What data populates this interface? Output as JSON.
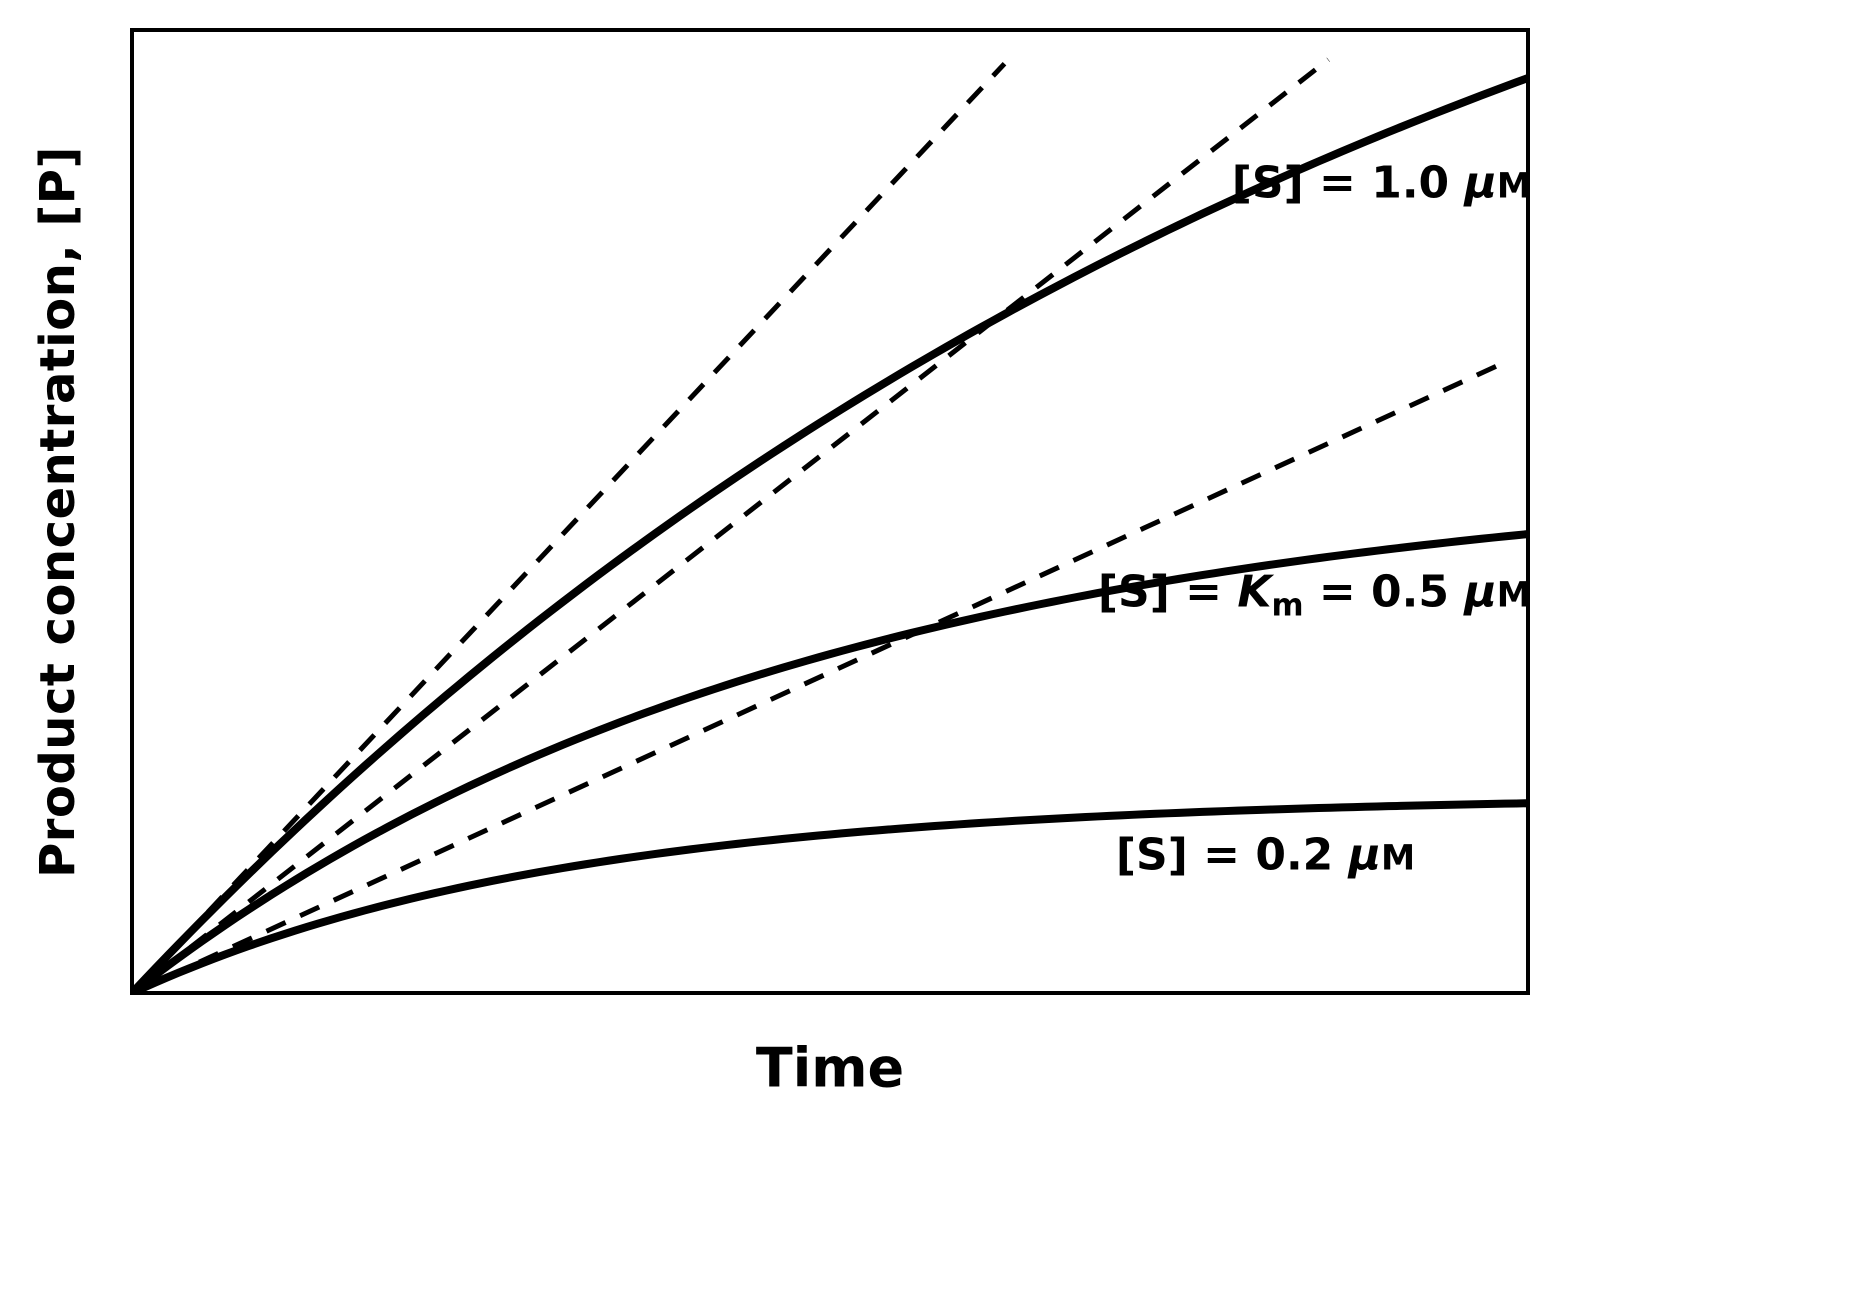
{
  "figure": {
    "background": "#ffffff",
    "ink_color": "#000000",
    "kind": "enzyme-kinetics-progress-curves"
  },
  "chart_data": {
    "type": "line",
    "title": "",
    "xlabel": "Time",
    "ylabel": "Product concentration, [P]",
    "x_axis": {
      "range": [
        0,
        1
      ],
      "ticks": [],
      "label": "Time"
    },
    "y_axis": {
      "range": [
        0,
        1
      ],
      "ticks": [],
      "label": "Product concentration, [P]"
    },
    "grid": false,
    "legend": "inline-labels",
    "description": "Product concentration [P] versus time for three substrate concentrations; solid progress curves saturate over time, dashed straight lines from the origin show the initial velocity (tangent at t = 0) for each curve.",
    "series": [
      {
        "name": "[S] = 1.0 uM",
        "line": "solid",
        "model": "y = plateau * (1 - exp(-k * t))",
        "plateau": 1.45,
        "k": 1.065,
        "initial_slope": 1.544,
        "y_at_t1": 0.95
      },
      {
        "name": "[S] = Km = 0.5 uM",
        "line": "solid",
        "model": "y = plateau * (1 - exp(-k * t))",
        "plateau": 0.545,
        "k": 2.075,
        "initial_slope": 1.131,
        "y_at_t1": 0.477
      },
      {
        "name": "[S] = 0.2 uM",
        "line": "solid",
        "model": "y = plateau * (1 - exp(-k * t))",
        "plateau": 0.205,
        "k": 3.25,
        "initial_slope": 0.666,
        "y_at_t1": 0.197
      }
    ],
    "tangent_lines": [
      {
        "tangent_to": "[S] = 1.0 uM",
        "slope": 1.544,
        "x_start": 0,
        "x_end": 0.625,
        "line": "dashed"
      },
      {
        "tangent_to": "[S] = Km = 0.5 uM",
        "slope": 1.131,
        "x_start": 0,
        "x_end": 0.857,
        "line": "dashed"
      },
      {
        "tangent_to": "[S] = 0.2 uM",
        "slope": 0.666,
        "x_start": 0,
        "x_end": 0.986,
        "line": "dashed"
      }
    ],
    "annotations": [
      {
        "x": 0.895,
        "y": 0.841,
        "parts": [
          {
            "t": "[S] = 1.0 "
          },
          {
            "t": "μ",
            "i": true
          },
          {
            "t": "M",
            "sc": true
          }
        ]
      },
      {
        "x": 0.847,
        "y": 0.413,
        "parts": [
          {
            "t": "[S] = "
          },
          {
            "t": "K",
            "i": true
          },
          {
            "t": "m",
            "sub": true
          },
          {
            "t": " = 0.5 "
          },
          {
            "t": "μ",
            "i": true
          },
          {
            "t": "M",
            "sc": true
          }
        ]
      },
      {
        "x": 0.812,
        "y": 0.143,
        "parts": [
          {
            "t": "[S] = 0.2 "
          },
          {
            "t": "μ",
            "i": true
          },
          {
            "t": "M",
            "sc": true
          }
        ]
      }
    ]
  }
}
